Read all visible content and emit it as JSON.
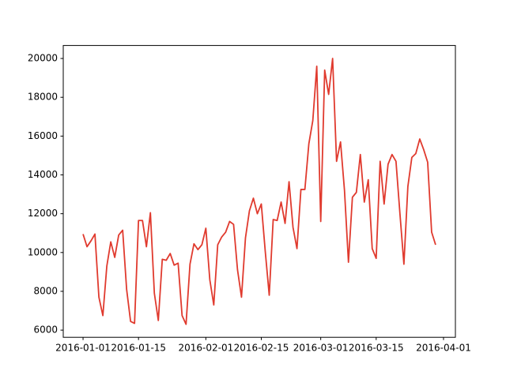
{
  "chart_data": {
    "type": "line",
    "x": [
      "2016-01-01",
      "2016-01-02",
      "2016-01-03",
      "2016-01-04",
      "2016-01-05",
      "2016-01-06",
      "2016-01-07",
      "2016-01-08",
      "2016-01-09",
      "2016-01-10",
      "2016-01-11",
      "2016-01-12",
      "2016-01-13",
      "2016-01-14",
      "2016-01-15",
      "2016-01-16",
      "2016-01-17",
      "2016-01-18",
      "2016-01-19",
      "2016-01-20",
      "2016-01-21",
      "2016-01-22",
      "2016-01-23",
      "2016-01-24",
      "2016-01-25",
      "2016-01-26",
      "2016-01-27",
      "2016-01-28",
      "2016-01-29",
      "2016-01-30",
      "2016-01-31",
      "2016-02-01",
      "2016-02-02",
      "2016-02-03",
      "2016-02-04",
      "2016-02-05",
      "2016-02-06",
      "2016-02-07",
      "2016-02-08",
      "2016-02-09",
      "2016-02-10",
      "2016-02-11",
      "2016-02-12",
      "2016-02-13",
      "2016-02-14",
      "2016-02-15",
      "2016-02-16",
      "2016-02-17",
      "2016-02-18",
      "2016-02-19",
      "2016-02-20",
      "2016-02-21",
      "2016-02-22",
      "2016-02-23",
      "2016-02-24",
      "2016-02-25",
      "2016-02-26",
      "2016-02-27",
      "2016-02-28",
      "2016-02-29",
      "2016-03-01",
      "2016-03-02",
      "2016-03-03",
      "2016-03-04",
      "2016-03-05",
      "2016-03-06",
      "2016-03-07",
      "2016-03-08",
      "2016-03-09",
      "2016-03-10",
      "2016-03-11",
      "2016-03-12",
      "2016-03-13",
      "2016-03-14",
      "2016-03-15",
      "2016-03-16",
      "2016-03-17",
      "2016-03-18",
      "2016-03-19",
      "2016-03-20",
      "2016-03-21",
      "2016-03-22",
      "2016-03-23",
      "2016-03-24",
      "2016-03-25",
      "2016-03-26",
      "2016-03-27",
      "2016-03-28",
      "2016-03-29",
      "2016-03-30"
    ],
    "series": [
      {
        "color": "#e03a2e",
        "values": [
          10950,
          10300,
          10600,
          10950,
          7700,
          6750,
          9300,
          10550,
          9750,
          10900,
          11150,
          8100,
          6450,
          6350,
          11650,
          11650,
          10300,
          12050,
          7900,
          6500,
          9650,
          9600,
          9950,
          9350,
          9450,
          6750,
          6300,
          9400,
          10450,
          10150,
          10400,
          11250,
          8600,
          7300,
          10400,
          10800,
          11050,
          11600,
          11450,
          9100,
          7700,
          10750,
          12150,
          12800,
          12000,
          12500,
          10050,
          7800,
          11700,
          11650,
          12600,
          11500,
          13650,
          11300,
          10200,
          13250,
          13250,
          15600,
          16800,
          19600,
          11600,
          19400,
          18150,
          20000,
          14700,
          15700,
          13200,
          9500,
          12850,
          13100,
          15050,
          12600,
          13750,
          10200,
          9700,
          14700,
          12500,
          14550,
          15050,
          14700,
          12000,
          9400,
          13400,
          14900,
          15100,
          15850,
          15300,
          14650,
          11050,
          10400
        ]
      }
    ],
    "xlim": [
      "2015-12-27",
      "2016-04-04"
    ],
    "xticks": [
      "2016-01-01",
      "2016-01-15",
      "2016-02-01",
      "2016-02-15",
      "2016-03-01",
      "2016-03-15",
      "2016-04-01"
    ],
    "ylim": [
      5630,
      20670
    ],
    "yticks": [
      6000,
      8000,
      10000,
      12000,
      14000,
      16000,
      18000,
      20000
    ]
  }
}
